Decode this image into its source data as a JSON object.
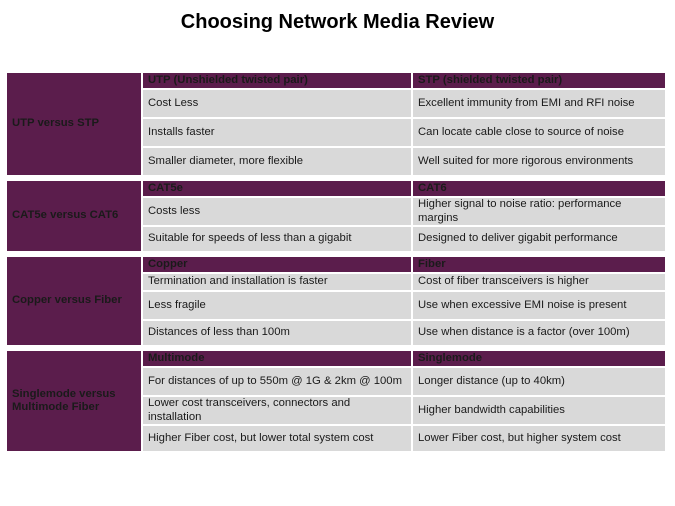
{
  "page": {
    "title": "Choosing Network Media Review"
  },
  "colors": {
    "section_bg": "#5b1d4c",
    "cell_bg": "#d9d9d9",
    "header_text": "#ffffff"
  },
  "sections": [
    {
      "label": "UTP versus STP",
      "header": [
        "UTP (Unshielded twisted pair)",
        "STP (shielded twisted pair)"
      ],
      "rows": [
        [
          "Cost Less",
          "Excellent immunity from EMI and RFI noise"
        ],
        [
          "Installs faster",
          "Can locate cable close to source of noise"
        ],
        [
          "Smaller diameter, more flexible",
          "Well suited for more rigorous environments"
        ]
      ]
    },
    {
      "label": "CAT5e versus CAT6",
      "header": [
        "CAT5e",
        "CAT6"
      ],
      "rows": [
        [
          "Costs less",
          "Higher signal to noise ratio: performance margins"
        ],
        [
          "Suitable for speeds of less than a gigabit",
          "Designed to deliver gigabit performance"
        ]
      ]
    },
    {
      "label": "Copper versus Fiber",
      "header": [
        "Copper",
        "Fiber"
      ],
      "rows": [
        [
          "Termination and installation is faster",
          "Cost of fiber transceivers is higher"
        ],
        [
          "Less fragile",
          "Use when excessive EMI noise is present"
        ],
        [
          "Distances of less than 100m",
          "Use when distance is a factor (over 100m)"
        ]
      ]
    },
    {
      "label": "Singlemode versus Multimode Fiber",
      "header": [
        "Multimode",
        "Singlemode"
      ],
      "rows": [
        [
          "For distances of up to 550m @ 1G & 2km @ 100m",
          "Longer distance (up to 40km)"
        ],
        [
          "Lower cost transceivers, connectors and installation",
          "Higher bandwidth capabilities"
        ],
        [
          "Higher Fiber cost, but lower total system cost",
          "Lower Fiber cost, but higher system cost"
        ]
      ]
    }
  ]
}
